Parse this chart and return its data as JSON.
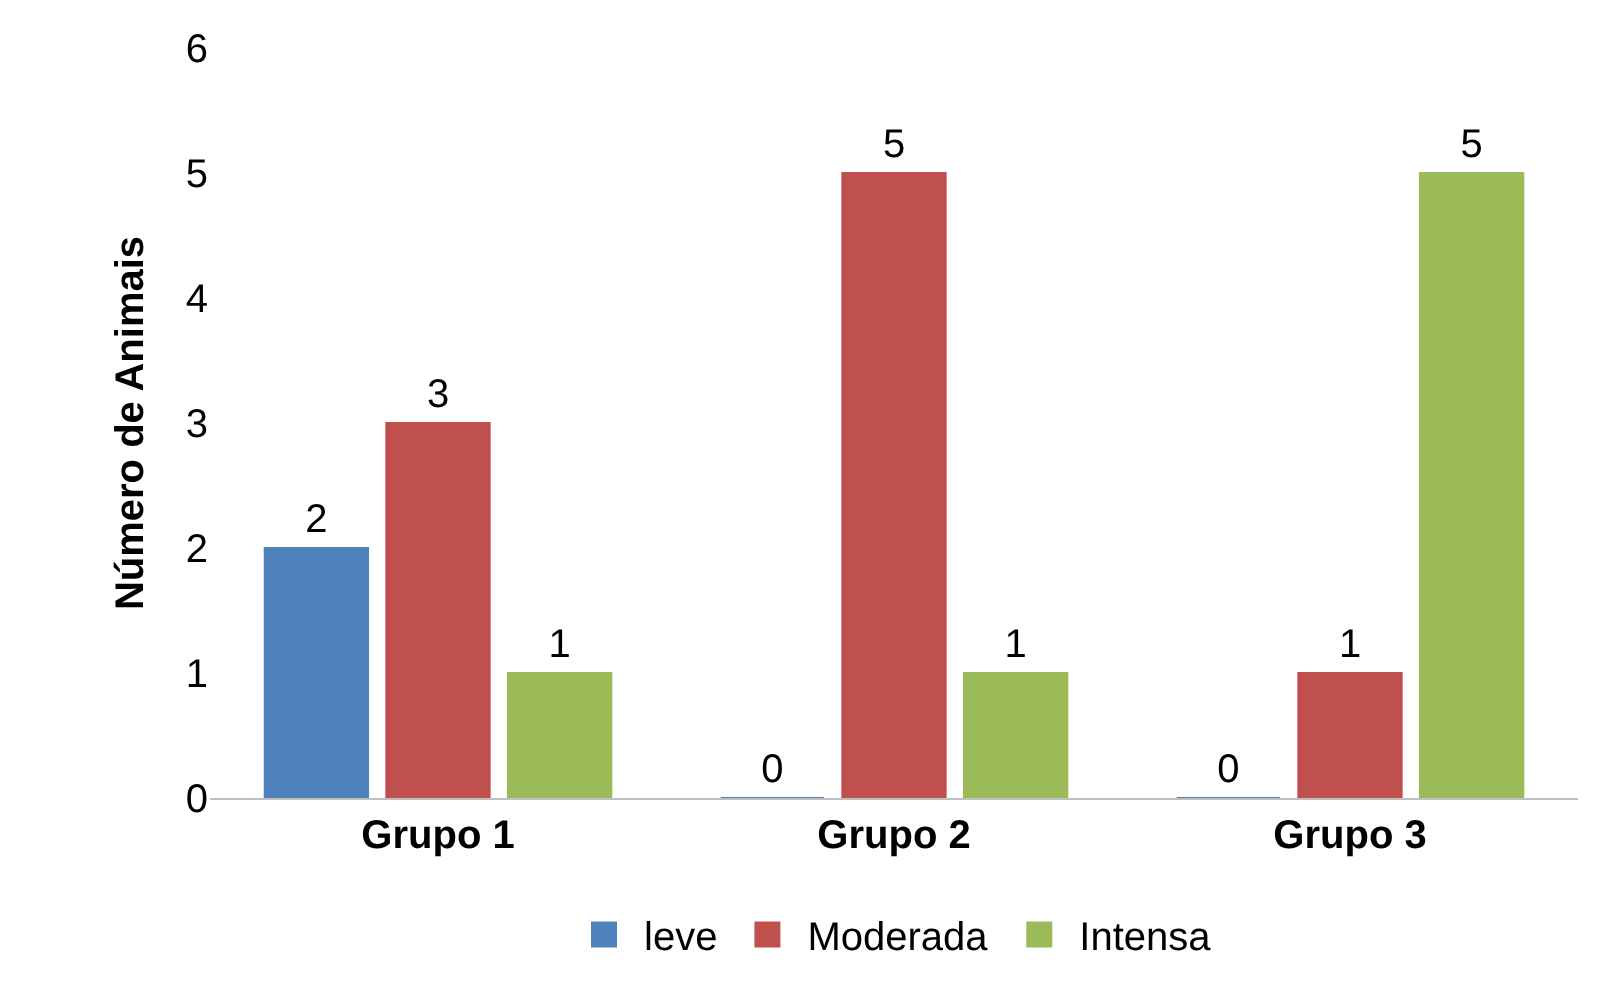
{
  "chart_data": {
    "type": "bar",
    "ylabel": "Número de Animais",
    "categories": [
      "Grupo 1",
      "Grupo 2",
      "Grupo 3"
    ],
    "series": [
      {
        "name": "leve",
        "color": "#4f81bd",
        "values": [
          2,
          0,
          0
        ]
      },
      {
        "name": "Moderada",
        "color": "#c0504d",
        "values": [
          3,
          5,
          1
        ]
      },
      {
        "name": "Intensa",
        "color": "#9bbb59",
        "values": [
          1,
          1,
          5
        ]
      }
    ],
    "ylim": [
      0,
      6
    ],
    "yticks": [
      0,
      1,
      2,
      3,
      4,
      5,
      6
    ],
    "legend": "bottom",
    "data_labels": true
  }
}
